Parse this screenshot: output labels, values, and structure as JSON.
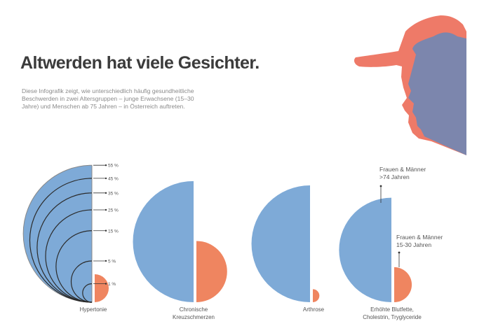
{
  "header": {
    "title": "Altwerden hat viele Gesichter.",
    "intro": "Diese Infografik zeigt, wie unterschiedlich häufig gesundheitliche Beschwerden in zwei Altersgruppen – junge Erwachsene (15–30 Jahre) und Menschen ab 75 Jahren – in Österreich auftreten."
  },
  "colors": {
    "older": "#7eaad7",
    "young": "#ef8560",
    "head_young": "#ee7a68",
    "head_old": "#7c86ad"
  },
  "chart_data": {
    "type": "semicircle-area",
    "scale_ticks": [
      {
        "value": 55,
        "label": "55 %"
      },
      {
        "value": 45,
        "label": "45 %"
      },
      {
        "value": 35,
        "label": "35 %"
      },
      {
        "value": 25,
        "label": "25 %"
      },
      {
        "value": 15,
        "label": "15 %"
      },
      {
        "value": 5,
        "label": "5 %"
      },
      {
        "value": 1,
        "label": "1 %"
      }
    ],
    "series": [
      {
        "name": "Frauen & Männer >74  Jahren",
        "key": "older"
      },
      {
        "name": "Frauen & Männer 15-30 Jahren",
        "key": "young"
      }
    ],
    "categories": [
      {
        "label": [
          "Hypertonie"
        ],
        "older": 55,
        "young": 2.3
      },
      {
        "label": [
          "Chronische",
          "Kreuzschmerzen"
        ],
        "older": 43,
        "young": 11
      },
      {
        "label": [
          "Arthrose"
        ],
        "older": 40,
        "young": 0.5
      },
      {
        "label": [
          "Erhöhte Blutfette,",
          "Cholestrin, Tryglyceride"
        ],
        "older": 32,
        "young": 3.6
      }
    ],
    "annotations": [
      {
        "lines": [
          "Frauen & Männer",
          ">74  Jahren"
        ]
      },
      {
        "lines": [
          "Frauen & Männer",
          "15-30 Jahren"
        ]
      }
    ]
  }
}
